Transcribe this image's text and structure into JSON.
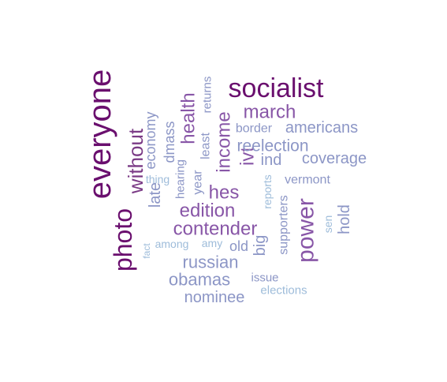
{
  "words": [
    {
      "text": "everyone",
      "color": "#6a0f6e",
      "rotated": true
    },
    {
      "text": "socialist",
      "color": "#6a0f6e",
      "rotated": false
    },
    {
      "text": "photo",
      "color": "#6a0f6e",
      "rotated": true
    },
    {
      "text": "without",
      "color": "#7a3a85",
      "rotated": true
    },
    {
      "text": "power",
      "color": "#8856a7",
      "rotated": true
    },
    {
      "text": "march",
      "color": "#8856a7",
      "rotated": false
    },
    {
      "text": "income",
      "color": "#8856a7",
      "rotated": true
    },
    {
      "text": "health",
      "color": "#8856a7",
      "rotated": true
    },
    {
      "text": "ivt",
      "color": "#8856a7",
      "rotated": true
    },
    {
      "text": "hes",
      "color": "#8856a7",
      "rotated": false
    },
    {
      "text": "edition",
      "color": "#8856a7",
      "rotated": false
    },
    {
      "text": "contender",
      "color": "#8856a7",
      "rotated": false
    },
    {
      "text": "reelection",
      "color": "#8c96c6",
      "rotated": false
    },
    {
      "text": "russian",
      "color": "#8c96c6",
      "rotated": false
    },
    {
      "text": "obamas",
      "color": "#8c96c6",
      "rotated": false
    },
    {
      "text": "nominee",
      "color": "#8c96c6",
      "rotated": false
    },
    {
      "text": "americans",
      "color": "#8c96c6",
      "rotated": false
    },
    {
      "text": "coverage",
      "color": "#8c96c6",
      "rotated": false
    },
    {
      "text": "economy",
      "color": "#8c96c6",
      "rotated": true
    },
    {
      "text": "late",
      "color": "#8c96c6",
      "rotated": true
    },
    {
      "text": "dmass",
      "color": "#8c96c6",
      "rotated": true
    },
    {
      "text": "year",
      "color": "#8c96c6",
      "rotated": true
    },
    {
      "text": "least",
      "color": "#8c96c6",
      "rotated": true
    },
    {
      "text": "returns",
      "color": "#8c96c6",
      "rotated": true
    },
    {
      "text": "ind",
      "color": "#8c96c6",
      "rotated": false
    },
    {
      "text": "hold",
      "color": "#8c96c6",
      "rotated": true
    },
    {
      "text": "big",
      "color": "#8c96c6",
      "rotated": true
    },
    {
      "text": "old",
      "color": "#8c96c6",
      "rotated": false
    },
    {
      "text": "supporters",
      "color": "#8c96c6",
      "rotated": true
    },
    {
      "text": "border",
      "color": "#8c96c6",
      "rotated": false
    },
    {
      "text": "vermont",
      "color": "#8c96c6",
      "rotated": false
    },
    {
      "text": "hearing",
      "color": "#8c96c6",
      "rotated": true
    },
    {
      "text": "issue",
      "color": "#8c96c6",
      "rotated": false
    },
    {
      "text": "reports",
      "color": "#9ebcda",
      "rotated": true
    },
    {
      "text": "sen",
      "color": "#9ebcda",
      "rotated": true
    },
    {
      "text": "elections",
      "color": "#9ebcda",
      "rotated": false
    },
    {
      "text": "among",
      "color": "#9ebcda",
      "rotated": false
    },
    {
      "text": "amy",
      "color": "#9ebcda",
      "rotated": false
    },
    {
      "text": "thing",
      "color": "#9ebcda",
      "rotated": false
    },
    {
      "text": "fact",
      "color": "#9ebcda",
      "rotated": true
    }
  ]
}
